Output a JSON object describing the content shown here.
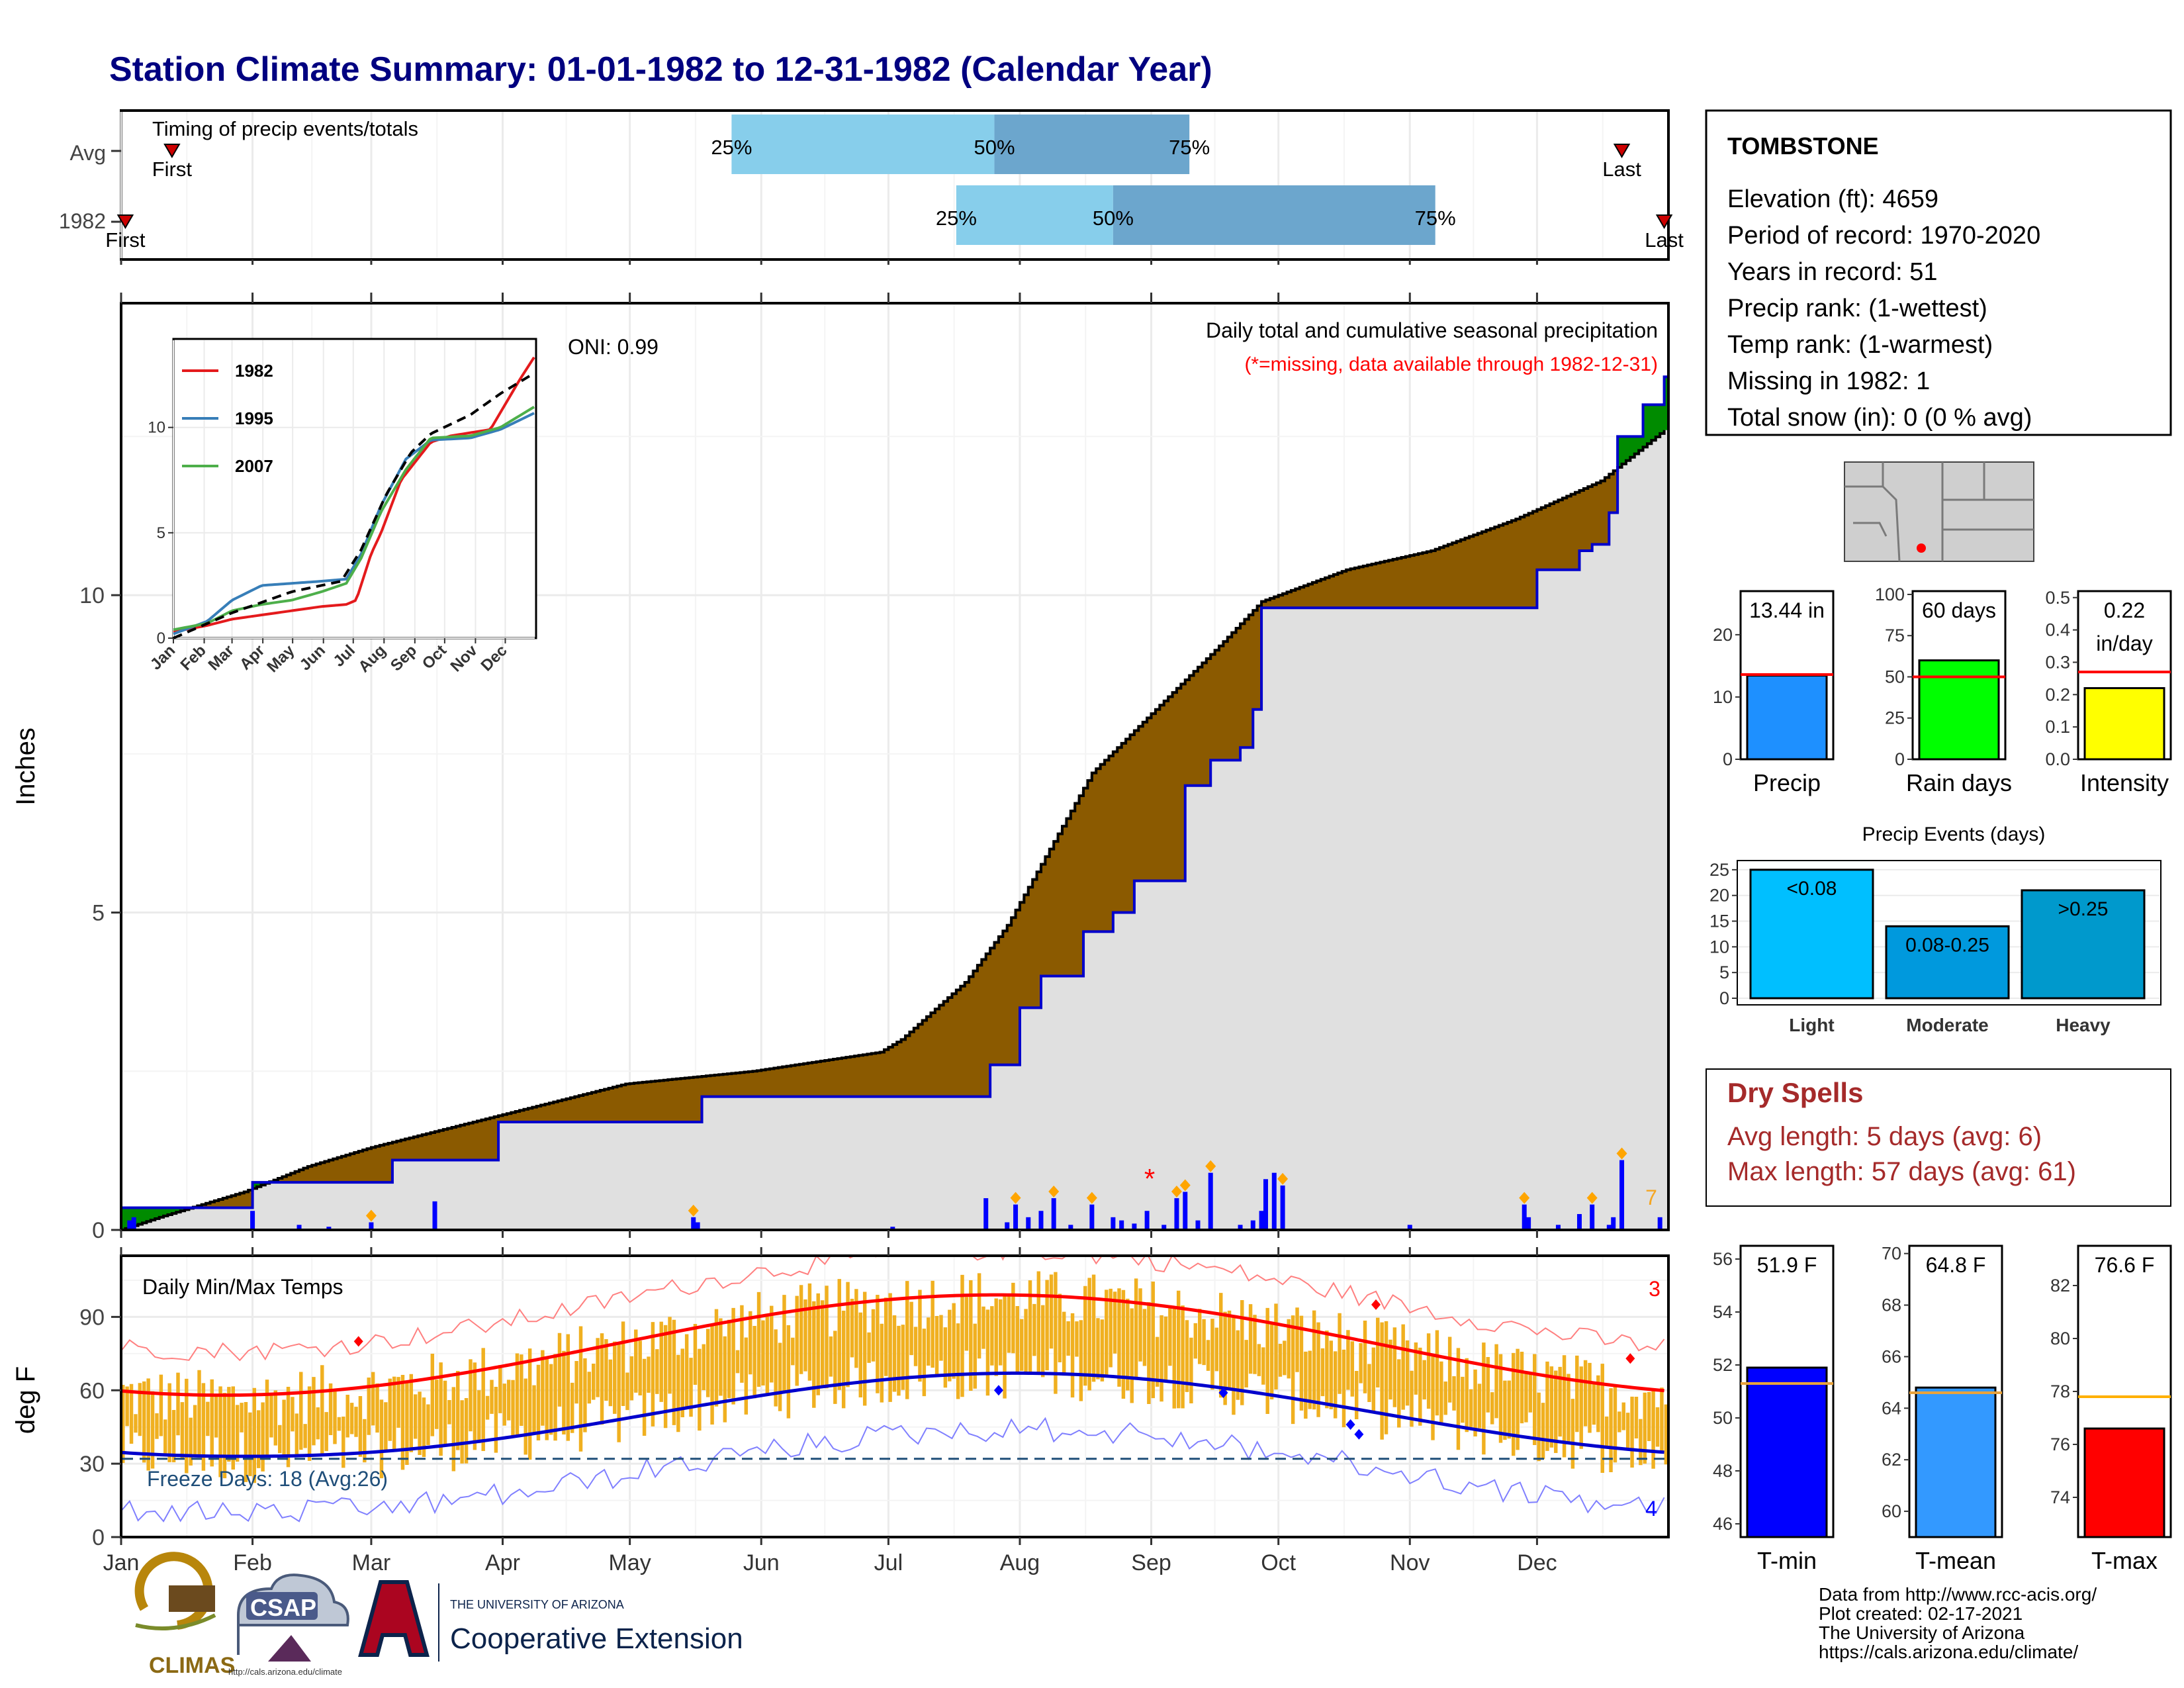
{
  "title": "Station Climate Summary: 01-01-1982 to 12-31-1982 (Calendar Year)",
  "colors": {
    "title": "#000080",
    "above_normal": "#8B5A00",
    "exceed": "#008B00",
    "normal_fill": "#E0E0E0",
    "precip_bar": "#0000FF",
    "temp_bar": "#F0B020",
    "tmax": "#FF0000",
    "tmin": "#0000CC",
    "quart_light": "#87CEEB",
    "quart_dark": "#6CA6CD",
    "dry_spells": "#A52A2A"
  },
  "timing": {
    "title": "Timing of precip events/totals",
    "rows": [
      {
        "label": "Avg",
        "first_label": "First",
        "last_label": "Last",
        "first_day": 13,
        "last_day": 355,
        "q25_label": "25%",
        "q50_label": "50%",
        "q75_label": "75%",
        "q25": 145,
        "q50": 207,
        "q75": 253
      },
      {
        "label": "1982",
        "first_label": "First",
        "last_label": "Last",
        "first_day": 2,
        "last_day": 365,
        "q25_label": "25%",
        "q50_label": "50%",
        "q75_label": "75%",
        "q25": 198,
        "q50": 235,
        "q75": 311
      }
    ]
  },
  "months": [
    "Jan",
    "Feb",
    "Mar",
    "Apr",
    "May",
    "Jun",
    "Jul",
    "Aug",
    "Sep",
    "Oct",
    "Nov",
    "Dec"
  ],
  "precip_panel": {
    "ylabel": "Inches",
    "yticks": [
      "0",
      "5",
      "10"
    ],
    "title": "Daily total and cumulative seasonal precipitation",
    "subtitle": "(*=missing, data available through 1982-12-31)",
    "oni": "ONI: 0.99",
    "count_label": "7",
    "missing_marker": "*"
  },
  "inset": {
    "legend": [
      "1982",
      "1995",
      "2007"
    ],
    "yticks": [
      "0",
      "5",
      "10"
    ],
    "months": [
      "Jan",
      "Feb",
      "Mar",
      "Apr",
      "May",
      "Jun",
      "Jul",
      "Aug",
      "Sep",
      "Oct",
      "Nov",
      "Dec"
    ]
  },
  "temp_panel": {
    "ylabel": "deg F",
    "title": "Daily Min/Max Temps",
    "yticks": [
      "0",
      "30",
      "60",
      "90"
    ],
    "freeze": "Freeze Days: 18 (Avg:26)",
    "hi_count": "3",
    "lo_count": "4"
  },
  "station": {
    "name": "TOMBSTONE",
    "lines": [
      "Elevation (ft): 4659",
      "Period of record: 1970-2020",
      "Years in record: 51",
      "Precip rank:  (1-wettest)",
      "Temp rank:  (1-warmest)",
      "Missing in 1982: 1",
      "Total snow (in): 0 (0 % avg)"
    ]
  },
  "mini_precip": {
    "value_label": "13.44 in",
    "xlabel": "Precip",
    "yticks": [
      "0",
      "10",
      "20"
    ]
  },
  "mini_raindays": {
    "value_label": "60 days",
    "xlabel": "Rain days",
    "yticks": [
      "0",
      "25",
      "50",
      "75",
      "100"
    ]
  },
  "mini_intensity": {
    "value_label1": "0.22",
    "value_label2": "in/day",
    "xlabel": "Intensity",
    "yticks": [
      "0.0",
      "0.1",
      "0.2",
      "0.3",
      "0.4",
      "0.5"
    ]
  },
  "events": {
    "title": "Precip Events (days)",
    "yticks": [
      "0",
      "5",
      "10",
      "15",
      "20",
      "25"
    ],
    "bars": [
      {
        "label": "<0.08",
        "cat": "Light",
        "value": 25
      },
      {
        "label": "0.08-0.25",
        "cat": "Moderate",
        "value": 14
      },
      {
        "label": ">0.25",
        "cat": "Heavy",
        "value": 21
      }
    ]
  },
  "dry_spells": {
    "title": "Dry Spells",
    "avg": "Avg length: 5 days (avg: 6)",
    "max": "Max length: 57 days (avg: 61)"
  },
  "mini_tmin": {
    "value_label": "51.9 F",
    "xlabel": "T-min",
    "yticks": [
      "46",
      "48",
      "50",
      "52",
      "54",
      "56"
    ]
  },
  "mini_tmean": {
    "value_label": "64.8 F",
    "xlabel": "T-mean",
    "yticks": [
      "60",
      "62",
      "64",
      "66",
      "68",
      "70"
    ]
  },
  "mini_tmax": {
    "value_label": "76.6 F",
    "xlabel": "T-max",
    "yticks": [
      "74",
      "76",
      "78",
      "80",
      "82"
    ]
  },
  "footer": [
    "Data from http://www.rcc-acis.org/",
    "Plot created: 02-17-2021",
    "The University of Arizona",
    "https://cals.arizona.edu/climate/"
  ],
  "logos": {
    "climas": "CLIMAS",
    "csap": "CSAP",
    "csap_url": "http://cals.arizona.edu/climate",
    "ua_line1": "THE UNIVERSITY OF ARIZONA",
    "ua_line2": "Cooperative Extension"
  },
  "chart_data": {
    "type": "area",
    "title": "Daily total and cumulative seasonal precipitation",
    "ylabel": "Inches",
    "ylim": [
      0,
      14.6
    ],
    "cumulative_1982_knots": [
      [
        1,
        0.35
      ],
      [
        28,
        0.35
      ],
      [
        32,
        0.75
      ],
      [
        60,
        0.75
      ],
      [
        65,
        1.1
      ],
      [
        90,
        1.7
      ],
      [
        135,
        1.7
      ],
      [
        138,
        2.1
      ],
      [
        183,
        2.1
      ],
      [
        205,
        2.1
      ],
      [
        206,
        2.6
      ],
      [
        210,
        2.6
      ],
      [
        213,
        3.5
      ],
      [
        218,
        4.0
      ],
      [
        225,
        4.0
      ],
      [
        228,
        4.7
      ],
      [
        235,
        5.0
      ],
      [
        240,
        5.5
      ],
      [
        248,
        5.5
      ],
      [
        252,
        7.0
      ],
      [
        258,
        7.4
      ],
      [
        265,
        7.6
      ],
      [
        268,
        8.2
      ],
      [
        270,
        9.8
      ],
      [
        332,
        9.8
      ],
      [
        335,
        10.4
      ],
      [
        345,
        10.7
      ],
      [
        348,
        10.8
      ],
      [
        352,
        11.3
      ],
      [
        354,
        12.5
      ],
      [
        358,
        12.5
      ],
      [
        360,
        13.0
      ],
      [
        365,
        13.44
      ]
    ],
    "cumulative_avg_knots": [
      [
        1,
        0
      ],
      [
        10,
        0.2
      ],
      [
        30,
        0.6
      ],
      [
        45,
        1.0
      ],
      [
        60,
        1.3
      ],
      [
        90,
        1.8
      ],
      [
        120,
        2.3
      ],
      [
        150,
        2.5
      ],
      [
        180,
        2.8
      ],
      [
        185,
        3.0
      ],
      [
        200,
        3.9
      ],
      [
        210,
        4.8
      ],
      [
        220,
        6.0
      ],
      [
        230,
        7.2
      ],
      [
        245,
        8.2
      ],
      [
        260,
        9.2
      ],
      [
        270,
        9.9
      ],
      [
        290,
        10.4
      ],
      [
        310,
        10.7
      ],
      [
        330,
        11.2
      ],
      [
        350,
        11.8
      ],
      [
        365,
        12.6
      ]
    ],
    "daily_precip_events": [
      [
        3,
        0.15
      ],
      [
        4,
        0.2
      ],
      [
        32,
        0.3
      ],
      [
        43,
        0.08
      ],
      [
        50,
        0.05
      ],
      [
        60,
        0.12
      ],
      [
        75,
        0.45
      ],
      [
        136,
        0.2
      ],
      [
        137,
        0.12
      ],
      [
        183,
        0.05
      ],
      [
        205,
        0.5
      ],
      [
        210,
        0.12
      ],
      [
        212,
        0.4
      ],
      [
        215,
        0.2
      ],
      [
        218,
        0.3
      ],
      [
        221,
        0.5
      ],
      [
        225,
        0.08
      ],
      [
        230,
        0.4
      ],
      [
        235,
        0.2
      ],
      [
        237,
        0.15
      ],
      [
        240,
        0.1
      ],
      [
        243,
        0.3
      ],
      [
        247,
        0.08
      ],
      [
        250,
        0.5
      ],
      [
        252,
        0.6
      ],
      [
        255,
        0.15
      ],
      [
        258,
        0.9
      ],
      [
        265,
        0.08
      ],
      [
        268,
        0.15
      ],
      [
        270,
        0.3
      ],
      [
        271,
        0.8
      ],
      [
        273,
        0.9
      ],
      [
        275,
        0.7
      ],
      [
        305,
        0.08
      ],
      [
        332,
        0.4
      ],
      [
        333,
        0.2
      ],
      [
        340,
        0.08
      ],
      [
        345,
        0.25
      ],
      [
        348,
        0.4
      ],
      [
        352,
        0.08
      ],
      [
        353,
        0.2
      ],
      [
        355,
        1.1
      ],
      [
        364,
        0.2
      ]
    ],
    "inset_series": [
      {
        "name": "1982",
        "knots": [
          [
            1,
            0.3
          ],
          [
            35,
            0.6
          ],
          [
            60,
            0.9
          ],
          [
            90,
            1.1
          ],
          [
            120,
            1.3
          ],
          [
            150,
            1.5
          ],
          [
            175,
            1.6
          ],
          [
            185,
            1.8
          ],
          [
            200,
            4.0
          ],
          [
            210,
            5.0
          ],
          [
            230,
            7.5
          ],
          [
            260,
            9.3
          ],
          [
            280,
            9.6
          ],
          [
            320,
            9.9
          ],
          [
            350,
            12.3
          ],
          [
            365,
            13.4
          ]
        ]
      },
      {
        "name": "1995",
        "knots": [
          [
            1,
            0.2
          ],
          [
            35,
            0.8
          ],
          [
            60,
            1.8
          ],
          [
            90,
            2.5
          ],
          [
            120,
            2.6
          ],
          [
            150,
            2.7
          ],
          [
            175,
            2.8
          ],
          [
            190,
            4.0
          ],
          [
            210,
            6.3
          ],
          [
            235,
            8.5
          ],
          [
            260,
            9.4
          ],
          [
            300,
            9.5
          ],
          [
            330,
            9.9
          ],
          [
            365,
            10.7
          ]
        ]
      },
      {
        "name": "2007",
        "knots": [
          [
            1,
            0.4
          ],
          [
            35,
            0.7
          ],
          [
            60,
            1.3
          ],
          [
            90,
            1.6
          ],
          [
            120,
            1.8
          ],
          [
            150,
            2.2
          ],
          [
            175,
            2.6
          ],
          [
            190,
            3.8
          ],
          [
            210,
            6.0
          ],
          [
            235,
            8.0
          ],
          [
            260,
            9.5
          ],
          [
            300,
            9.6
          ],
          [
            330,
            10.0
          ],
          [
            365,
            11.0
          ]
        ]
      }
    ],
    "inset_avg": [
      [
        1,
        0
      ],
      [
        60,
        1.2
      ],
      [
        120,
        2.2
      ],
      [
        170,
        2.7
      ],
      [
        190,
        4.2
      ],
      [
        215,
        6.8
      ],
      [
        240,
        8.8
      ],
      [
        260,
        9.7
      ],
      [
        300,
        10.6
      ],
      [
        330,
        11.6
      ],
      [
        365,
        12.6
      ]
    ],
    "temp_normals": {
      "tmax_avg_range": [
        58,
        99
      ],
      "tmin_avg_range": [
        33,
        67
      ],
      "ylim": [
        0,
        115
      ]
    },
    "mini_bars": {
      "precip": {
        "value": 13.44,
        "avg": 13.6,
        "ylim": [
          0,
          27
        ]
      },
      "rain_days": {
        "value": 60,
        "avg": 50,
        "ylim": [
          0,
          102
        ]
      },
      "intensity": {
        "value": 0.22,
        "avg": 0.27,
        "ylim": [
          0,
          0.52
        ]
      },
      "tmin": {
        "value": 51.9,
        "avg": 51.3,
        "ylim": [
          45.5,
          56.5
        ]
      },
      "tmean": {
        "value": 64.8,
        "avg": 64.6,
        "ylim": [
          59,
          70.3
        ]
      },
      "tmax": {
        "value": 76.6,
        "avg": 77.8,
        "ylim": [
          72.5,
          83.5
        ]
      }
    }
  }
}
